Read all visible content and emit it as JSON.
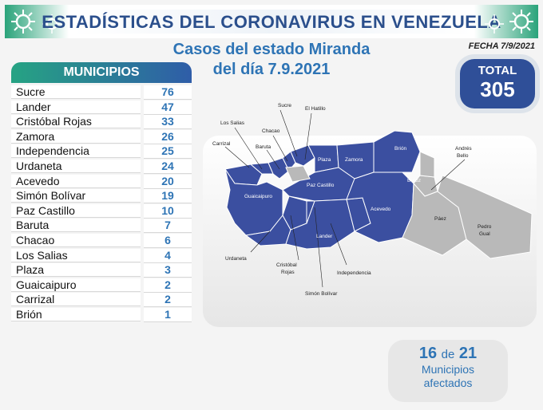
{
  "header": {
    "title": "ESTADÍSTICAS DEL CORONAVIRUS EN VENEZUELA"
  },
  "subtitle": {
    "line1": "Casos del estado Miranda",
    "line2": "del día 7.9.2021"
  },
  "fecha": "FECHA 7/9/2021",
  "municipios": {
    "header": "MUNICIPIOS",
    "rows": [
      {
        "name": "Sucre",
        "value": "76"
      },
      {
        "name": "Lander",
        "value": "47"
      },
      {
        "name": "Cristóbal Rojas",
        "value": "33"
      },
      {
        "name": "Zamora",
        "value": "26"
      },
      {
        "name": "Independencia",
        "value": "25"
      },
      {
        "name": "Urdaneta",
        "value": "24"
      },
      {
        "name": "Acevedo",
        "value": "20"
      },
      {
        "name": "Simón Bolívar",
        "value": "19"
      },
      {
        "name": "Paz Castillo",
        "value": "10"
      },
      {
        "name": "Baruta",
        "value": "7"
      },
      {
        "name": "Chacao",
        "value": "6"
      },
      {
        "name": "Los Salias",
        "value": "4"
      },
      {
        "name": "Plaza",
        "value": "3"
      },
      {
        "name": "Guaicaipuro",
        "value": "2"
      },
      {
        "name": "Carrizal",
        "value": "2"
      },
      {
        "name": "Brión",
        "value": "1"
      }
    ]
  },
  "total": {
    "label": "TOTAL",
    "value": "305"
  },
  "afectados": {
    "count": "16",
    "de": "de",
    "total": "21",
    "line2": "Municipios",
    "line3": "afectados"
  },
  "map": {
    "labels": {
      "sucre": "Sucre",
      "el_hatillo": "El Hatillo",
      "los_salias": "Los Salias",
      "chacao": "Chacao",
      "carrizal": "Carrizal",
      "baruta": "Baruta",
      "plaza": "Plaza",
      "zamora": "Zamora",
      "brion": "Brión",
      "andres_bello_1": "Andrés",
      "andres_bello_2": "Bello",
      "buroz": "Buroz",
      "guaicaipuro": "Guaicaipuro",
      "paz_castillo": "Paz Castillo",
      "acevedo": "Acevedo",
      "paez": "Páez",
      "pedro_gual_1": "Pedro",
      "pedro_gual_2": "Gual",
      "lander": "Lander",
      "urdaneta": "Urdaneta",
      "cristobal_rojas_1": "Cristóbal",
      "cristobal_rojas_2": "Rojas",
      "independencia": "Independencia",
      "simon_bolivar": "Simón Bolívar"
    },
    "colors": {
      "affected": "#3b4fa0",
      "unaffected": "#b9b9b9",
      "border": "#ffffff"
    }
  }
}
